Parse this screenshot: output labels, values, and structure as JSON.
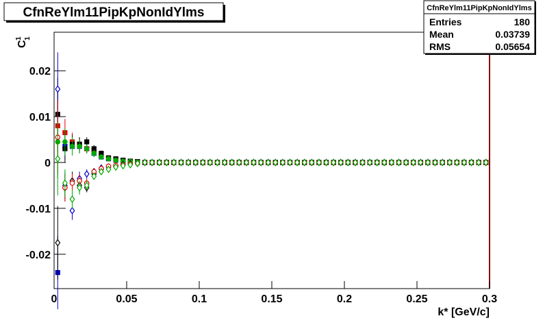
{
  "chart_data": {
    "type": "scatter",
    "title": "CfnReYlm11PipKpNonIdYlms",
    "x_label": "k* [GeV/c]",
    "y_label": {
      "base": "C",
      "sup": "1",
      "sub": "1"
    },
    "xlim": [
      0,
      0.3
    ],
    "ylim": [
      -0.0275,
      0.0284
    ],
    "xticks": [
      0,
      0.05,
      0.1,
      0.15,
      0.2,
      0.25,
      0.3
    ],
    "yticks": [
      -0.02,
      -0.01,
      0,
      0.01,
      0.02
    ],
    "grid": false,
    "stats_box": {
      "title": "CfnReYlm11PipKpNonIdYlms",
      "rows": [
        [
          "Entries",
          "180"
        ],
        [
          "Mean",
          "0.03739"
        ],
        [
          "RMS",
          "0.05654"
        ]
      ]
    },
    "x": [
      0.0025,
      0.0075,
      0.0125,
      0.0175,
      0.0225,
      0.0275,
      0.0325,
      0.0375,
      0.0425,
      0.0475,
      0.0525,
      0.0575,
      0.0625,
      0.0675,
      0.0725,
      0.0775,
      0.0825,
      0.0875,
      0.0925,
      0.0975,
      0.1025,
      0.1075,
      0.1125,
      0.1175,
      0.1225,
      0.1275,
      0.1325,
      0.1375,
      0.1425,
      0.1475,
      0.1525,
      0.1575,
      0.1625,
      0.1675,
      0.1725,
      0.1775,
      0.1825,
      0.1875,
      0.1925,
      0.1975,
      0.2025,
      0.2075,
      0.2125,
      0.2175,
      0.2225,
      0.2275,
      0.2325,
      0.2375,
      0.2425,
      0.2475,
      0.2525,
      0.2575,
      0.2625,
      0.2675,
      0.2725,
      0.2775,
      0.2825,
      0.2875,
      0.2925,
      0.2975
    ],
    "series": [
      {
        "color": "#0000cc",
        "marker": "square",
        "filled": true,
        "values": [
          -0.024,
          0.0035,
          0.0035,
          0.0035,
          0.003,
          0.002,
          0.0012,
          0.0008,
          0.0005,
          0.0003,
          0.0002,
          0.0002,
          0,
          0,
          0,
          0,
          0,
          0,
          0,
          0,
          0,
          0,
          0,
          0,
          0,
          0,
          0,
          0,
          0,
          0,
          0,
          0,
          0,
          0,
          0,
          0,
          0,
          0,
          0,
          0,
          0,
          0,
          0,
          0,
          0,
          0,
          0,
          0,
          0,
          0,
          0,
          0,
          0,
          0,
          0,
          0,
          0,
          0,
          0,
          0
        ],
        "errors": [
          0.008,
          0.003,
          0.002,
          0.0015,
          0.001,
          0.0008,
          0.0006,
          0.0005,
          0.0004,
          0.0004,
          0.0003,
          0.0003,
          0.0003,
          0.0003,
          0.0003,
          0.0003,
          0.0003,
          0.0003,
          0.0003,
          0.0003,
          0.0003,
          0.0003,
          0.0003,
          0.0003,
          0.0003,
          0.0003,
          0.0003,
          0.0003,
          0.0003,
          0.0003,
          0.0003,
          0.0003,
          0.0003,
          0.0003,
          0.0003,
          0.0003,
          0.0003,
          0.0003,
          0.0003,
          0.0003,
          0.0003,
          0.0003,
          0.0003,
          0.0003,
          0.0003,
          0.0003,
          0.0003,
          0.0003,
          0.0003,
          0.0003,
          0.0003,
          0.0003,
          0.0003,
          0.0003,
          0.0003,
          0.0003,
          0.0003,
          0.0003,
          0.0003,
          0.0003
        ]
      },
      {
        "color": "#dd0000",
        "marker": "square",
        "filled": true,
        "values": [
          0.008,
          0.0065,
          0.0045,
          0.004,
          0.003,
          0.0025,
          0.0015,
          0.001,
          0.0007,
          0.0004,
          0.0002,
          0.0002,
          0,
          0,
          0,
          0,
          0,
          0,
          0,
          0,
          0,
          0,
          0,
          0,
          0,
          0,
          0,
          0,
          0,
          0,
          0,
          0,
          0,
          0,
          0,
          0,
          0,
          0,
          0,
          0,
          0,
          0,
          0,
          0,
          0,
          0,
          0,
          0,
          0,
          0,
          0,
          0,
          0,
          0,
          0,
          0,
          0,
          0,
          0,
          0
        ],
        "errors": [
          0.008,
          0.003,
          0.002,
          0.0015,
          0.001,
          0.0008,
          0.0006,
          0.0005,
          0.0004,
          0.0004,
          0.0003,
          0.0003,
          0.0003,
          0.0003,
          0.0003,
          0.0003,
          0.0003,
          0.0003,
          0.0003,
          0.0003,
          0.0003,
          0.0003,
          0.0003,
          0.0003,
          0.0003,
          0.0003,
          0.0003,
          0.0003,
          0.0003,
          0.0003,
          0.0003,
          0.0003,
          0.0003,
          0.0003,
          0.0003,
          0.0003,
          0.0003,
          0.0003,
          0.0003,
          0.0003,
          0.0003,
          0.0003,
          0.0003,
          0.0003,
          0.0003,
          0.0003,
          0.0003,
          0.0003,
          0.0003,
          0.0003,
          0.0003,
          0.0003,
          0.0003,
          0.0003,
          0.0003,
          0.0003,
          0.0003,
          0.0003,
          0.0003,
          0.0003
        ]
      },
      {
        "color": "#000000",
        "marker": "square",
        "filled": true,
        "values": [
          0.0105,
          0.003,
          0.004,
          0.004,
          0.0045,
          0.003,
          0.002,
          0.001,
          0.0008,
          0.0005,
          0.0003,
          0.0002,
          0,
          0,
          0,
          0,
          0,
          0,
          0,
          0,
          0,
          0,
          0,
          0,
          0,
          0,
          0,
          0,
          0,
          0,
          0,
          0,
          0,
          0,
          0,
          0,
          0,
          0,
          0,
          0,
          0,
          0,
          0,
          0,
          0,
          0,
          0,
          0,
          0,
          0,
          0,
          0,
          0,
          0,
          0,
          0,
          0,
          0,
          0,
          0
        ],
        "errors": [
          0.008,
          0.003,
          0.002,
          0.0015,
          0.001,
          0.0008,
          0.0006,
          0.0005,
          0.0004,
          0.0004,
          0.0003,
          0.0003,
          0.0003,
          0.0003,
          0.0003,
          0.0003,
          0.0003,
          0.0003,
          0.0003,
          0.0003,
          0.0003,
          0.0003,
          0.0003,
          0.0003,
          0.0003,
          0.0003,
          0.0003,
          0.0003,
          0.0003,
          0.0003,
          0.0003,
          0.0003,
          0.0003,
          0.0003,
          0.0003,
          0.0003,
          0.0003,
          0.0003,
          0.0003,
          0.0003,
          0.0003,
          0.0003,
          0.0003,
          0.0003,
          0.0003,
          0.0003,
          0.0003,
          0.0003,
          0.0003,
          0.0003,
          0.0003,
          0.0003,
          0.0003,
          0.0003,
          0.0003,
          0.0003,
          0.0003,
          0.0003,
          0.0003,
          0.0003
        ]
      },
      {
        "color": "#00aa00",
        "marker": "circle",
        "filled": true,
        "values": [
          0.0045,
          0.0045,
          0.0035,
          0.0035,
          0.003,
          0.002,
          0.0012,
          0.0008,
          0.0005,
          0.0003,
          0.0002,
          0.0001,
          0,
          0,
          0,
          0,
          0,
          0,
          0,
          0,
          0,
          0,
          0,
          0,
          0,
          0,
          0,
          0,
          0,
          0,
          0,
          0,
          0,
          0,
          0,
          0,
          0,
          0,
          0,
          0,
          0,
          0,
          0,
          0,
          0,
          0,
          0,
          0,
          0,
          0,
          0,
          0,
          0,
          0,
          0,
          0,
          0,
          0,
          0,
          0
        ],
        "errors": [
          0.008,
          0.003,
          0.002,
          0.0015,
          0.001,
          0.0008,
          0.0006,
          0.0005,
          0.0004,
          0.0004,
          0.0003,
          0.0003,
          0.0003,
          0.0003,
          0.0003,
          0.0003,
          0.0003,
          0.0003,
          0.0003,
          0.0003,
          0.0003,
          0.0003,
          0.0003,
          0.0003,
          0.0003,
          0.0003,
          0.0003,
          0.0003,
          0.0003,
          0.0003,
          0.0003,
          0.0003,
          0.0003,
          0.0003,
          0.0003,
          0.0003,
          0.0003,
          0.0003,
          0.0003,
          0.0003,
          0.0003,
          0.0003,
          0.0003,
          0.0003,
          0.0003,
          0.0003,
          0.0003,
          0.0003,
          0.0003,
          0.0003,
          0.0003,
          0.0003,
          0.0003,
          0.0003,
          0.0003,
          0.0003,
          0.0003,
          0.0003,
          0.0003,
          0.0003
        ]
      },
      {
        "color": "#0000cc",
        "marker": "diamond",
        "filled": false,
        "values": [
          0.016,
          -0.005,
          -0.0105,
          -0.0035,
          -0.0025,
          -0.002,
          -0.0012,
          -0.001,
          -0.0008,
          -0.0005,
          -0.0003,
          -0.0002,
          0,
          0,
          0,
          0,
          0,
          0,
          0,
          0,
          0,
          0,
          0,
          0,
          0,
          0,
          0,
          0,
          0,
          0,
          0,
          0,
          0,
          0,
          0,
          0,
          0,
          0,
          0,
          0,
          0,
          0,
          0,
          0,
          0,
          0,
          0,
          0,
          0,
          0,
          0,
          0,
          0,
          0,
          0,
          0,
          0,
          0,
          0,
          0
        ],
        "errors": [
          0.008,
          0.003,
          0.002,
          0.0015,
          0.001,
          0.0008,
          0.0006,
          0.0005,
          0.0004,
          0.0004,
          0.0003,
          0.0003,
          0.0003,
          0.0003,
          0.0003,
          0.0003,
          0.0003,
          0.0003,
          0.0003,
          0.0003,
          0.0003,
          0.0003,
          0.0003,
          0.0003,
          0.0003,
          0.0003,
          0.0003,
          0.0003,
          0.0003,
          0.0003,
          0.0003,
          0.0003,
          0.0003,
          0.0003,
          0.0003,
          0.0003,
          0.0003,
          0.0003,
          0.0003,
          0.0003,
          0.0003,
          0.0003,
          0.0003,
          0.0003,
          0.0003,
          0.0003,
          0.0003,
          0.0003,
          0.0003,
          0.0003,
          0.0003,
          0.0003,
          0.0003,
          0.0003,
          0.0003,
          0.0003,
          0.0003,
          0.0003,
          0.0003,
          0.0003
        ]
      },
      {
        "color": "#000000",
        "marker": "diamond",
        "filled": false,
        "values": [
          -0.0175,
          -0.0055,
          -0.004,
          -0.005,
          -0.0055,
          -0.0025,
          -0.0015,
          -0.001,
          -0.0008,
          -0.0005,
          -0.0003,
          -0.0002,
          0,
          0,
          0,
          0,
          0,
          0,
          0,
          0,
          0,
          0,
          0,
          0,
          0,
          0,
          0,
          0,
          0,
          0,
          0,
          0,
          0,
          0,
          0,
          0,
          0,
          0,
          0,
          0,
          0,
          0,
          0,
          0,
          0,
          0,
          0,
          0,
          0,
          0,
          0,
          0,
          0,
          0,
          0,
          0,
          0,
          0,
          0,
          0
        ],
        "errors": [
          0.008,
          0.003,
          0.002,
          0.0015,
          0.001,
          0.0008,
          0.0006,
          0.0005,
          0.0004,
          0.0004,
          0.0003,
          0.0003,
          0.0003,
          0.0003,
          0.0003,
          0.0003,
          0.0003,
          0.0003,
          0.0003,
          0.0003,
          0.0003,
          0.0003,
          0.0003,
          0.0003,
          0.0003,
          0.0003,
          0.0003,
          0.0003,
          0.0003,
          0.0003,
          0.0003,
          0.0003,
          0.0003,
          0.0003,
          0.0003,
          0.0003,
          0.0003,
          0.0003,
          0.0003,
          0.0003,
          0.0003,
          0.0003,
          0.0003,
          0.0003,
          0.0003,
          0.0003,
          0.0003,
          0.0003,
          0.0003,
          0.0003,
          0.0003,
          0.0003,
          0.0003,
          0.0003,
          0.0003,
          0.0003,
          0.0003,
          0.0003,
          0.0003,
          0.0003
        ]
      },
      {
        "color": "#dd0000",
        "marker": "circle",
        "filled": false,
        "values": [
          0.0055,
          -0.0055,
          -0.0045,
          -0.004,
          -0.0045,
          -0.002,
          -0.0013,
          -0.0008,
          -0.0006,
          -0.0005,
          -0.0003,
          -0.0002,
          0,
          0,
          0,
          0,
          0,
          0,
          0,
          0,
          0,
          0,
          0,
          0,
          0,
          0,
          0,
          0,
          0,
          0,
          0,
          0,
          0,
          0,
          0,
          0,
          0,
          0,
          0,
          0,
          0,
          0,
          0,
          0,
          0,
          0,
          0,
          0,
          0,
          0,
          0,
          0,
          0,
          0,
          0,
          0,
          0,
          0,
          0,
          0
        ],
        "errors": [
          0.008,
          0.003,
          0.002,
          0.0015,
          0.001,
          0.0008,
          0.0006,
          0.0005,
          0.0004,
          0.0004,
          0.0003,
          0.0003,
          0.0003,
          0.0003,
          0.0003,
          0.0003,
          0.0003,
          0.0003,
          0.0003,
          0.0003,
          0.0003,
          0.0003,
          0.0003,
          0.0003,
          0.0003,
          0.0003,
          0.0003,
          0.0003,
          0.0003,
          0.0003,
          0.0003,
          0.0003,
          0.0003,
          0.0003,
          0.0003,
          0.0003,
          0.0003,
          0.0003,
          0.0003,
          0.0003,
          0.0003,
          0.0003,
          0.0003,
          0.0003,
          0.0003,
          0.0003,
          0.0003,
          0.0003,
          0.0003,
          0.0003,
          0.0003,
          0.0003,
          0.0003,
          0.0003,
          0.0003,
          0.0003,
          0.0003,
          0.0003,
          0.0003,
          0.0003
        ]
      },
      {
        "color": "#00aa00",
        "marker": "diamond",
        "filled": false,
        "values": [
          0.0008,
          -0.0045,
          -0.008,
          -0.0055,
          -0.005,
          -0.003,
          -0.002,
          -0.0015,
          -0.001,
          -0.0007,
          -0.0005,
          -0.0002,
          0,
          0,
          0,
          0,
          0,
          0,
          0,
          0,
          0,
          0,
          0,
          0,
          0,
          0,
          0,
          0,
          0,
          0,
          0,
          0,
          0,
          0,
          0,
          0,
          0,
          0,
          0,
          0,
          0,
          0,
          0,
          0,
          0,
          0,
          0,
          0,
          0,
          0,
          0,
          0,
          0,
          0,
          0,
          0,
          0,
          0,
          0,
          0
        ],
        "errors": [
          0.008,
          0.003,
          0.002,
          0.0015,
          0.001,
          0.0008,
          0.0006,
          0.0005,
          0.0004,
          0.0004,
          0.0003,
          0.0003,
          0.0003,
          0.0003,
          0.0003,
          0.0003,
          0.0003,
          0.0003,
          0.0003,
          0.0003,
          0.0003,
          0.0003,
          0.0003,
          0.0003,
          0.0003,
          0.0003,
          0.0003,
          0.0003,
          0.0003,
          0.0003,
          0.0003,
          0.0003,
          0.0003,
          0.0003,
          0.0003,
          0.0003,
          0.0003,
          0.0003,
          0.0003,
          0.0003,
          0.0003,
          0.0003,
          0.0003,
          0.0003,
          0.0003,
          0.0003,
          0.0003,
          0.0003,
          0.0003,
          0.0003,
          0.0003,
          0.0003,
          0.0003,
          0.0003,
          0.0003,
          0.0003,
          0.0003,
          0.0003,
          0.0003,
          0.0003
        ]
      }
    ]
  }
}
